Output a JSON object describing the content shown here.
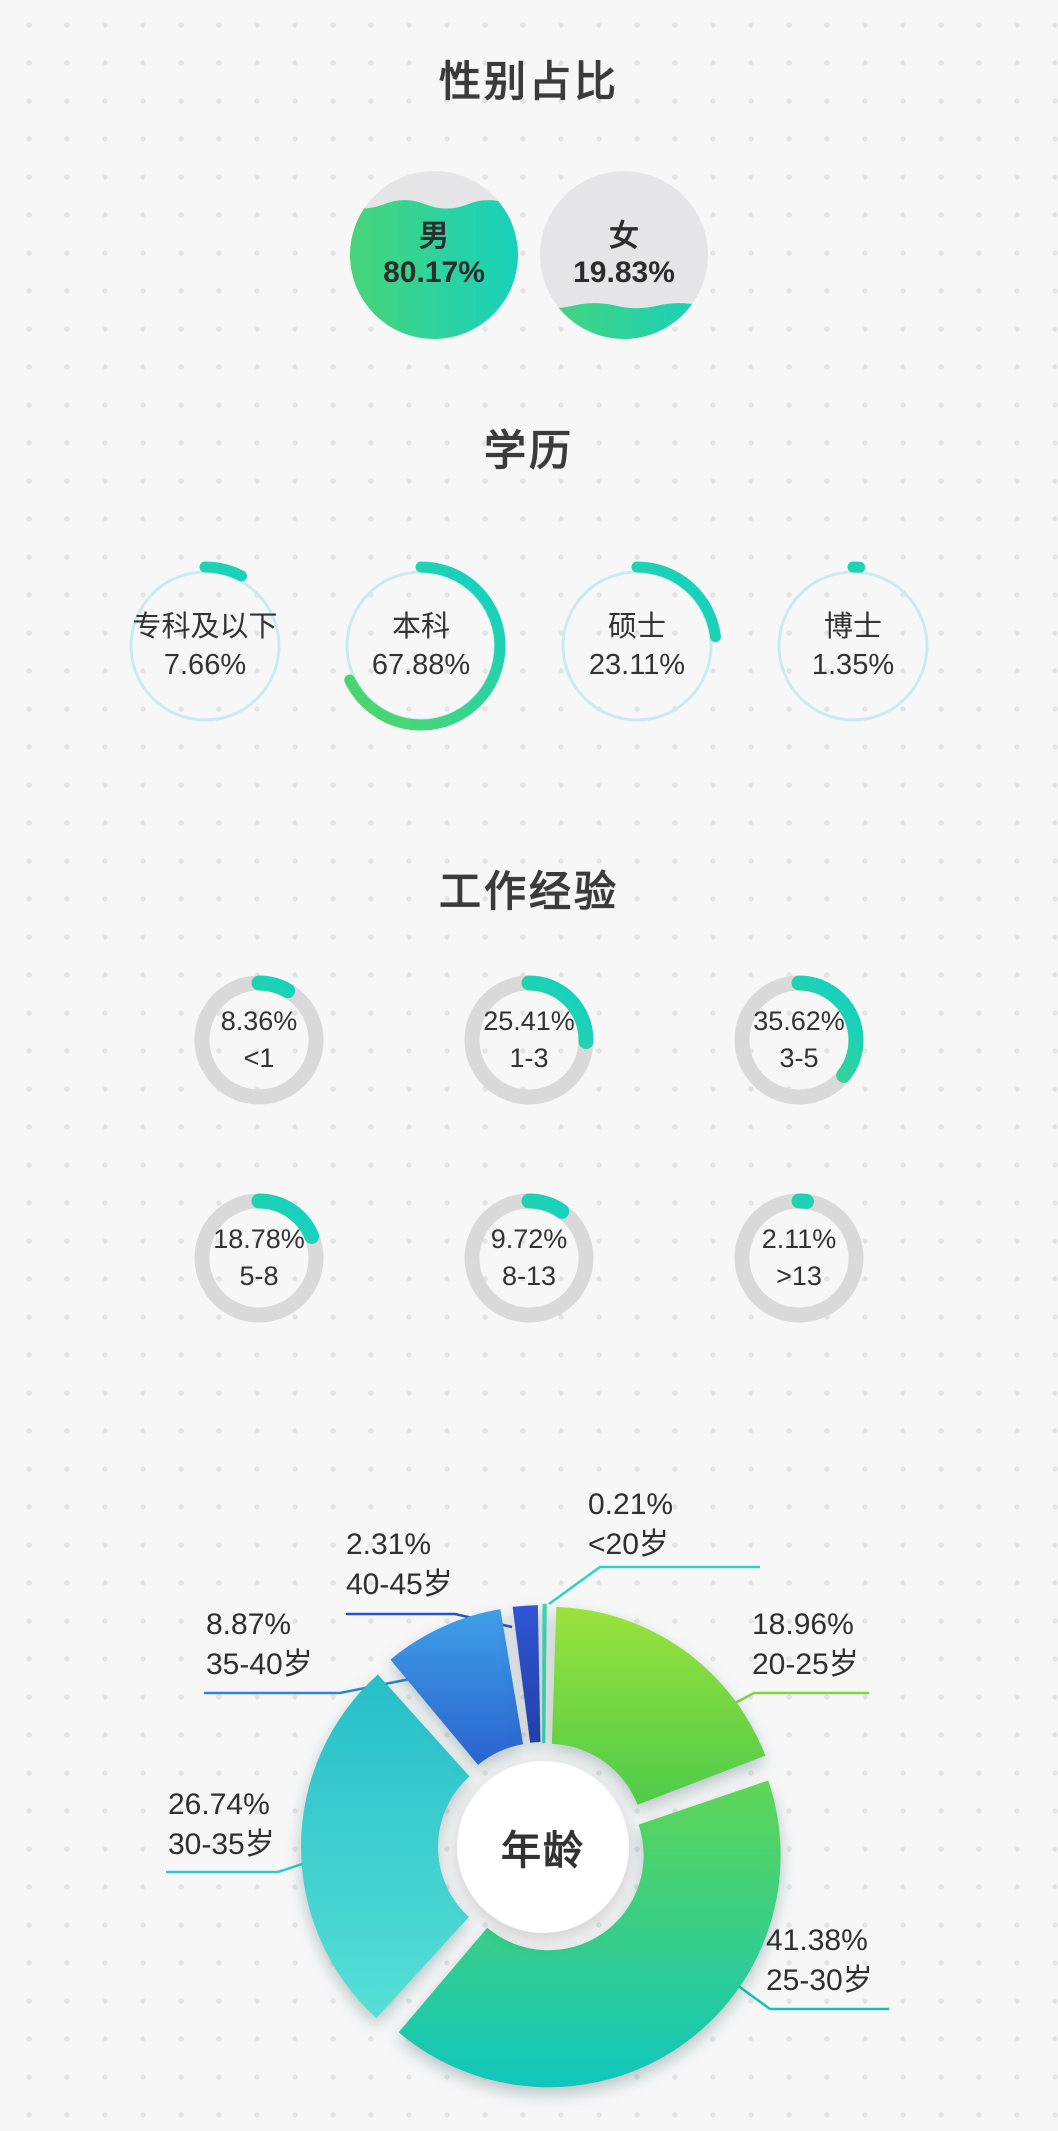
{
  "palette": {
    "green": "#55d663",
    "teal": "#0ed0cb",
    "empty": "#e5e5e7",
    "ring_cyan": "#c8ecee",
    "track_gray": "#d9d9d9"
  },
  "chart_data": [
    {
      "id": "gender",
      "type": "pie",
      "title": "性别占比",
      "categories": [
        "男",
        "女"
      ],
      "values": [
        80.17,
        19.83
      ],
      "items": [
        {
          "label": "男",
          "percent": 80.17,
          "percent_text": "80.17%"
        },
        {
          "label": "女",
          "percent": 19.83,
          "percent_text": "19.83%"
        }
      ]
    },
    {
      "id": "education",
      "type": "pie",
      "title": "学历",
      "categories": [
        "专科及以下",
        "本科",
        "硕士",
        "博士"
      ],
      "values": [
        7.66,
        67.88,
        23.11,
        1.35
      ],
      "items": [
        {
          "label": "专科及以下",
          "percent": 7.66,
          "percent_text": "7.66%"
        },
        {
          "label": "本科",
          "percent": 67.88,
          "percent_text": "67.88%"
        },
        {
          "label": "硕士",
          "percent": 23.11,
          "percent_text": "23.11%"
        },
        {
          "label": "博士",
          "percent": 1.35,
          "percent_text": "1.35%"
        }
      ]
    },
    {
      "id": "experience",
      "type": "pie",
      "title": "工作经验",
      "categories": [
        "<1",
        "1-3",
        "3-5",
        "5-8",
        "8-13",
        ">13"
      ],
      "values": [
        8.36,
        25.41,
        35.62,
        18.78,
        9.72,
        2.11
      ],
      "items": [
        {
          "label": "<1",
          "percent": 8.36,
          "percent_text": "8.36%"
        },
        {
          "label": "1-3",
          "percent": 25.41,
          "percent_text": "25.41%"
        },
        {
          "label": "3-5",
          "percent": 35.62,
          "percent_text": "35.62%"
        },
        {
          "label": "5-8",
          "percent": 18.78,
          "percent_text": "18.78%"
        },
        {
          "label": "8-13",
          "percent": 9.72,
          "percent_text": "9.72%"
        },
        {
          "label": ">13",
          "percent": 2.11,
          "percent_text": "2.11%"
        }
      ]
    },
    {
      "id": "age",
      "type": "pie",
      "title": "年龄",
      "center_label": "年龄",
      "categories": [
        "<20岁",
        "20-25岁",
        "25-30岁",
        "30-35岁",
        "35-40岁",
        "40-45岁"
      ],
      "values": [
        0.21,
        18.96,
        41.38,
        26.74,
        8.87,
        2.31
      ],
      "slices": [
        {
          "label": "<20岁",
          "percent": 0.21,
          "percent_text": "0.21%",
          "c1": "#3fd9b6",
          "c2": "#2fcfae",
          "line": "#35cfc0"
        },
        {
          "label": "20-25岁",
          "percent": 18.96,
          "percent_text": "18.96%",
          "c1": "#9ae23c",
          "c2": "#4ecb4a",
          "line": "#7ed63e"
        },
        {
          "label": "25-30岁",
          "percent": 41.38,
          "percent_text": "41.38%",
          "c1": "#5ed655",
          "c2": "#10c6bd",
          "line": "#16c2b4"
        },
        {
          "label": "30-35岁",
          "percent": 26.74,
          "percent_text": "26.74%",
          "c1": "#27bec9",
          "c2": "#55dfd6",
          "line": "#2cc8cc"
        },
        {
          "label": "35-40岁",
          "percent": 8.87,
          "percent_text": "8.87%",
          "c1": "#3f9fe8",
          "c2": "#2a63cf",
          "line": "#2e86d8"
        },
        {
          "label": "40-45岁",
          "percent": 2.31,
          "percent_text": "2.31%",
          "c1": "#2f55d4",
          "c2": "#2340a8",
          "line": "#2c50c8"
        }
      ]
    }
  ]
}
